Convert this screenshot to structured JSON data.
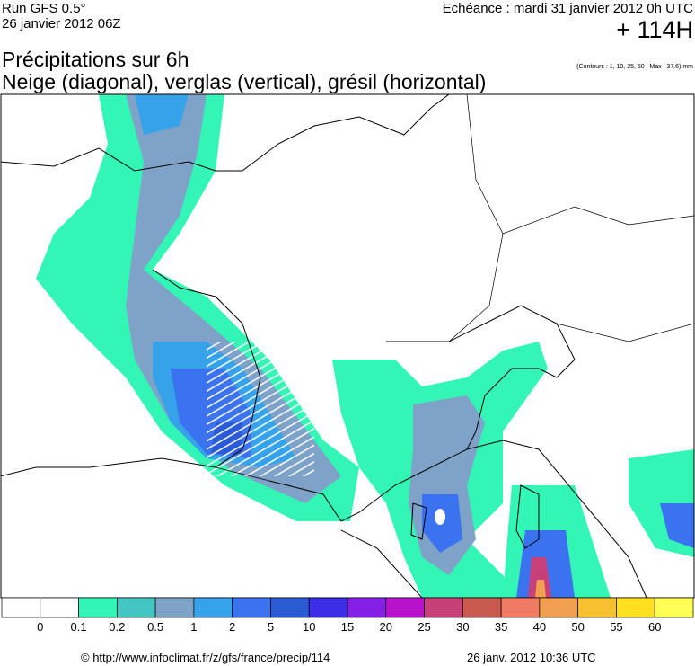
{
  "header": {
    "run": "Run GFS 0.5°",
    "run_date": "26 janvier 2012 06Z",
    "valid": "Echéance : mardi 31 janvier 2012 0h UTC",
    "lead": "+ 114H",
    "title": "Précipitations sur 6h",
    "subtitle": "Neige (diagonal), verglas (vertical), grésil (horizontal)",
    "contours": "(Contours : 1, 10, 25, 50 | Max : 37.6) mm"
  },
  "legend": {
    "labels": [
      "0",
      "0.1",
      "0.2",
      "0.5",
      "1",
      "2",
      "5",
      "10",
      "15",
      "20",
      "25",
      "30",
      "35",
      "40",
      "50",
      "55",
      "60"
    ],
    "colors": [
      "#ffffff",
      "#ffffff",
      "#33f5b5",
      "#44c6c2",
      "#7fa2c8",
      "#36a2ea",
      "#3a72f0",
      "#2a5ad4",
      "#3b2ee6",
      "#8420e6",
      "#b812cc",
      "#c8407a",
      "#c85a50",
      "#f07a62",
      "#f0a050",
      "#f7c030",
      "#ffe020",
      "#ffff55"
    ]
  },
  "footer": {
    "url": "© http://www.infoclimat.fr/z/gfs/france/precip/114",
    "generated": "26 janv. 2012 10:36 UTC"
  }
}
